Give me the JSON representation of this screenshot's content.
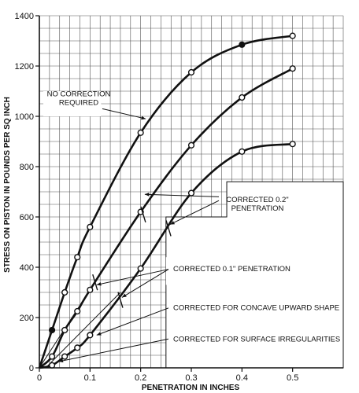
{
  "chart_data": {
    "type": "line",
    "xlabel": "PENETRATION IN INCHES",
    "ylabel": "STRESS ON PISTON IN POUNDS PER SQ INCH",
    "xlim": [
      0,
      0.6
    ],
    "ylim": [
      0,
      1400
    ],
    "x_ticks": [
      0,
      0.1,
      0.2,
      0.3,
      0.4,
      0.5
    ],
    "x_tick_labels": [
      "0",
      "0.1",
      "0.2",
      "0.3",
      "0.4",
      "0.5"
    ],
    "y_ticks": [
      0,
      200,
      400,
      600,
      800,
      1000,
      1200,
      1400
    ],
    "y_tick_labels": [
      "0",
      "200",
      "400",
      "600",
      "800",
      "1000",
      "1200",
      "1400"
    ],
    "grid": true,
    "series": [
      {
        "x": [
          0,
          0.025,
          0.05,
          0.075,
          0.1,
          0.2,
          0.3,
          0.4,
          0.5
        ],
        "y": [
          0,
          150,
          300,
          440,
          560,
          935,
          1175,
          1285,
          1320
        ],
        "filled": [
          false,
          true,
          false,
          false,
          false,
          false,
          false,
          true,
          false
        ]
      },
      {
        "x": [
          0,
          0.025,
          0.05,
          0.075,
          0.1,
          0.2,
          0.3,
          0.4,
          0.5
        ],
        "y": [
          0,
          45,
          150,
          225,
          310,
          620,
          885,
          1075,
          1190
        ],
        "filled": [
          false,
          false,
          false,
          false,
          false,
          false,
          false,
          false,
          false
        ]
      },
      {
        "x": [
          0,
          0.025,
          0.05,
          0.075,
          0.1,
          0.2,
          0.3,
          0.4,
          0.5
        ],
        "y": [
          0,
          10,
          45,
          80,
          130,
          395,
          695,
          860,
          890
        ],
        "filled": [
          false,
          false,
          false,
          false,
          false,
          false,
          false,
          false,
          false
        ]
      }
    ],
    "straight_lines": [
      {
        "x": [
          0,
          0.19
        ],
        "y": [
          0,
          590
        ]
      },
      {
        "x": [
          0.0125,
          0.16
        ],
        "y": [
          0,
          300
        ]
      }
    ],
    "annotations": [
      {
        "lines": [
          "NO CORRECTION",
          "REQUIRED"
        ],
        "target": [
          0.21,
          990
        ]
      },
      {
        "lines": [
          "CORRECTED 0.2\"",
          "PENETRATION"
        ],
        "targets": [
          [
            0.205,
            690
          ],
          [
            0.255,
            570
          ]
        ]
      },
      {
        "lines": [
          "CORRECTED 0.1\" PENETRATION"
        ],
        "targets": [
          [
            0.11,
            330
          ],
          [
            0.16,
            280
          ]
        ]
      },
      {
        "lines": [
          "CORRECTED FOR CONCAVE UPWARD SHAPE"
        ],
        "targets": [
          [
            0.11,
            130
          ]
        ]
      },
      {
        "lines": [
          "CORRECTED FOR SURFACE IRREGULARITIES"
        ],
        "targets": [
          [
            0.035,
            25
          ]
        ]
      }
    ]
  }
}
